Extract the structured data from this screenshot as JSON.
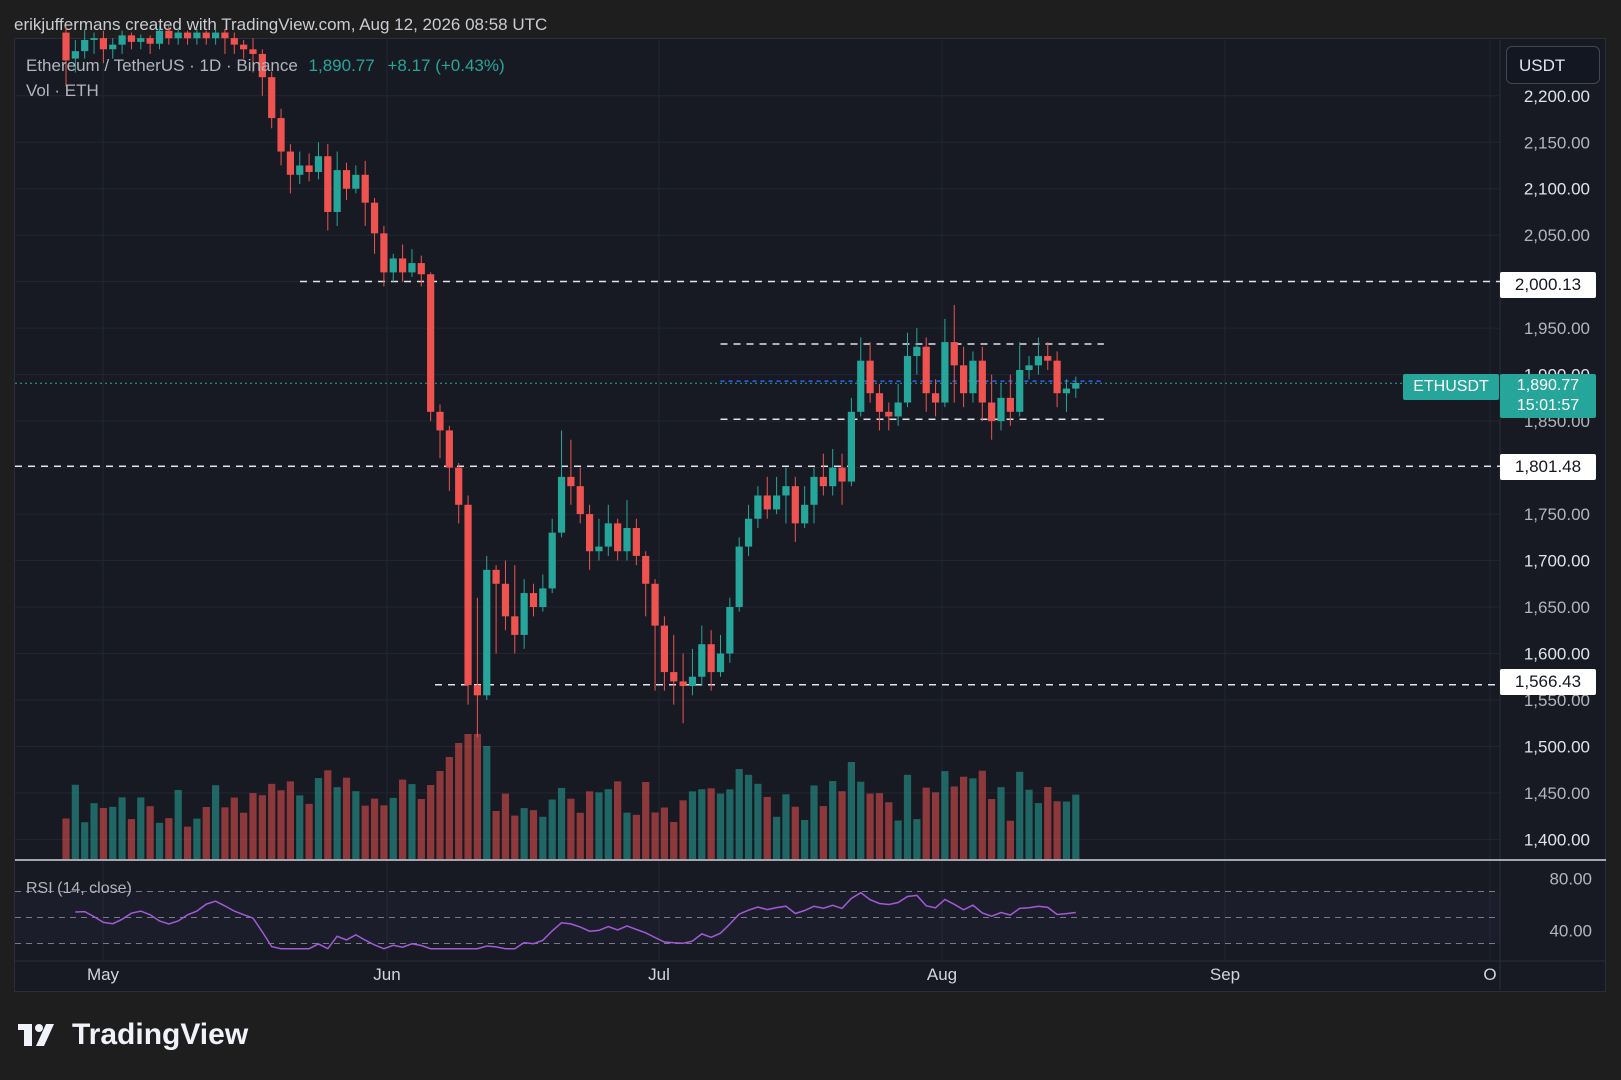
{
  "header": {
    "attribution": "erikjuffermans created with TradingView.com, Aug 12, 2026 08:58 UTC"
  },
  "legend": {
    "symbol_text": "Ethereum / TetherUS · 1D · Binance",
    "last_price": "1,890.77",
    "change": "+8.17 (+0.43%)",
    "volume_label": "Vol · ETH",
    "rsi_label": "RSI (14, close)"
  },
  "currency_button": "USDT",
  "tags": {
    "level_2000": "2,000.13",
    "level_1801": "1,801.48",
    "level_1566": "1,566.43",
    "symbol": "ETHUSDT",
    "last_price": "1,890.77",
    "countdown": "15:01:57"
  },
  "brand": "TradingView",
  "colors": {
    "up": "#26a69a",
    "down": "#ef5350",
    "rsi": "#a25ad6",
    "background": "#171a22"
  },
  "chart_data": {
    "type": "candlestick",
    "title": "Ethereum / TetherUS · 1D · Binance",
    "y_ticks": [
      "2,200.00",
      "2,150.00",
      "2,100.00",
      "2,050.00",
      "1,950.00",
      "1,900.00",
      "1,850.00",
      "1,750.00",
      "1,700.00",
      "1,650.00",
      "1,600.00",
      "1,550.00",
      "1,500.00",
      "1,450.00",
      "1,400.00"
    ],
    "x_ticks": [
      "May",
      "Jun",
      "Jul",
      "Aug",
      "Sep",
      "O"
    ],
    "ylim": [
      1380,
      2260
    ],
    "horizontal_levels": [
      2000.13,
      1801.48,
      1566.43
    ],
    "range_box": {
      "top": 1933,
      "bottom": 1852,
      "start_day": 70,
      "end_day": 111
    },
    "start_date": "2026-04-23",
    "candles": [
      [
        2268,
        2238,
        2210,
        2275
      ],
      [
        2240,
        2248,
        2225,
        2260
      ],
      [
        2248,
        2260,
        2240,
        2272
      ],
      [
        2260,
        2262,
        2245,
        2268
      ],
      [
        2262,
        2250,
        2235,
        2270
      ],
      [
        2250,
        2255,
        2240,
        2262
      ],
      [
        2255,
        2265,
        2245,
        2270
      ],
      [
        2265,
        2258,
        2250,
        2268
      ],
      [
        2258,
        2262,
        2250,
        2266
      ],
      [
        2262,
        2256,
        2245,
        2265
      ],
      [
        2256,
        2270,
        2250,
        2275
      ],
      [
        2270,
        2262,
        2255,
        2275
      ],
      [
        2262,
        2268,
        2255,
        2272
      ],
      [
        2268,
        2262,
        2255,
        2270
      ],
      [
        2262,
        2268,
        2255,
        2272
      ],
      [
        2268,
        2262,
        2255,
        2270
      ],
      [
        2262,
        2268,
        2255,
        2272
      ],
      [
        2268,
        2262,
        2245,
        2272
      ],
      [
        2262,
        2255,
        2245,
        2268
      ],
      [
        2255,
        2250,
        2240,
        2260
      ],
      [
        2250,
        2245,
        2225,
        2262
      ],
      [
        2245,
        2220,
        2200,
        2250
      ],
      [
        2220,
        2176,
        2165,
        2226
      ],
      [
        2176,
        2140,
        2125,
        2186
      ],
      [
        2140,
        2115,
        2095,
        2148
      ],
      [
        2115,
        2125,
        2105,
        2140
      ],
      [
        2125,
        2118,
        2108,
        2138
      ],
      [
        2118,
        2135,
        2110,
        2150
      ],
      [
        2135,
        2075,
        2055,
        2148
      ],
      [
        2075,
        2120,
        2060,
        2140
      ],
      [
        2120,
        2100,
        2088,
        2128
      ],
      [
        2100,
        2115,
        2095,
        2125
      ],
      [
        2115,
        2085,
        2060,
        2130
      ],
      [
        2085,
        2052,
        2030,
        2090
      ],
      [
        2052,
        2010,
        1995,
        2060
      ],
      [
        2010,
        2025,
        2000,
        2030
      ],
      [
        2025,
        2010,
        2000,
        2040
      ],
      [
        2010,
        2020,
        2005,
        2035
      ],
      [
        2020,
        2008,
        1995,
        2028
      ],
      [
        2008,
        1860,
        1850,
        2010
      ],
      [
        1860,
        1840,
        1810,
        1868
      ],
      [
        1840,
        1800,
        1775,
        1845
      ],
      [
        1800,
        1760,
        1740,
        1805
      ],
      [
        1760,
        1566,
        1545,
        1770
      ],
      [
        1566,
        1555,
        1510,
        1660
      ],
      [
        1555,
        1690,
        1550,
        1705
      ],
      [
        1690,
        1675,
        1600,
        1695
      ],
      [
        1675,
        1640,
        1625,
        1700
      ],
      [
        1640,
        1620,
        1600,
        1695
      ],
      [
        1620,
        1665,
        1605,
        1680
      ],
      [
        1665,
        1650,
        1640,
        1675
      ],
      [
        1650,
        1670,
        1645,
        1685
      ],
      [
        1670,
        1730,
        1665,
        1745
      ],
      [
        1730,
        1790,
        1725,
        1840
      ],
      [
        1790,
        1780,
        1760,
        1830
      ],
      [
        1780,
        1750,
        1740,
        1800
      ],
      [
        1750,
        1710,
        1690,
        1760
      ],
      [
        1710,
        1715,
        1700,
        1745
      ],
      [
        1715,
        1740,
        1705,
        1760
      ],
      [
        1740,
        1710,
        1700,
        1745
      ],
      [
        1710,
        1735,
        1700,
        1765
      ],
      [
        1735,
        1705,
        1695,
        1745
      ],
      [
        1705,
        1675,
        1640,
        1710
      ],
      [
        1675,
        1630,
        1560,
        1680
      ],
      [
        1630,
        1580,
        1560,
        1640
      ],
      [
        1580,
        1570,
        1545,
        1620
      ],
      [
        1570,
        1565,
        1525,
        1600
      ],
      [
        1565,
        1575,
        1555,
        1605
      ],
      [
        1575,
        1610,
        1565,
        1630
      ],
      [
        1610,
        1580,
        1560,
        1625
      ],
      [
        1580,
        1600,
        1575,
        1620
      ],
      [
        1600,
        1650,
        1590,
        1660
      ],
      [
        1650,
        1715,
        1645,
        1725
      ],
      [
        1715,
        1745,
        1705,
        1760
      ],
      [
        1745,
        1770,
        1735,
        1780
      ],
      [
        1770,
        1755,
        1745,
        1790
      ],
      [
        1755,
        1770,
        1750,
        1790
      ],
      [
        1770,
        1780,
        1740,
        1800
      ],
      [
        1780,
        1740,
        1720,
        1790
      ],
      [
        1740,
        1760,
        1735,
        1780
      ],
      [
        1760,
        1790,
        1740,
        1800
      ],
      [
        1790,
        1780,
        1770,
        1815
      ],
      [
        1780,
        1800,
        1770,
        1820
      ],
      [
        1800,
        1785,
        1760,
        1815
      ],
      [
        1785,
        1860,
        1780,
        1875
      ],
      [
        1860,
        1915,
        1855,
        1940
      ],
      [
        1915,
        1880,
        1870,
        1935
      ],
      [
        1880,
        1860,
        1840,
        1890
      ],
      [
        1860,
        1855,
        1840,
        1870
      ],
      [
        1855,
        1870,
        1845,
        1890
      ],
      [
        1870,
        1920,
        1865,
        1945
      ],
      [
        1920,
        1930,
        1900,
        1950
      ],
      [
        1930,
        1880,
        1860,
        1940
      ],
      [
        1880,
        1870,
        1855,
        1895
      ],
      [
        1870,
        1935,
        1865,
        1960
      ],
      [
        1935,
        1910,
        1870,
        1975
      ],
      [
        1910,
        1880,
        1865,
        1930
      ],
      [
        1880,
        1915,
        1870,
        1925
      ],
      [
        1915,
        1870,
        1850,
        1930
      ],
      [
        1870,
        1850,
        1830,
        1900
      ],
      [
        1850,
        1875,
        1840,
        1890
      ],
      [
        1875,
        1860,
        1845,
        1900
      ],
      [
        1860,
        1905,
        1855,
        1935
      ],
      [
        1905,
        1910,
        1895,
        1920
      ],
      [
        1910,
        1920,
        1900,
        1940
      ],
      [
        1920,
        1915,
        1905,
        1935
      ],
      [
        1915,
        1880,
        1865,
        1925
      ],
      [
        1880,
        1885,
        1860,
        1895
      ],
      [
        1885,
        1891,
        1875,
        1898
      ]
    ],
    "volume_scale_note": "volume bars in relative units",
    "rsi": {
      "name": "RSI (14, close)",
      "levels": [
        70,
        50,
        30
      ],
      "ticks": [
        "80.00",
        "40.00"
      ],
      "ylim": [
        25,
        85
      ]
    }
  }
}
